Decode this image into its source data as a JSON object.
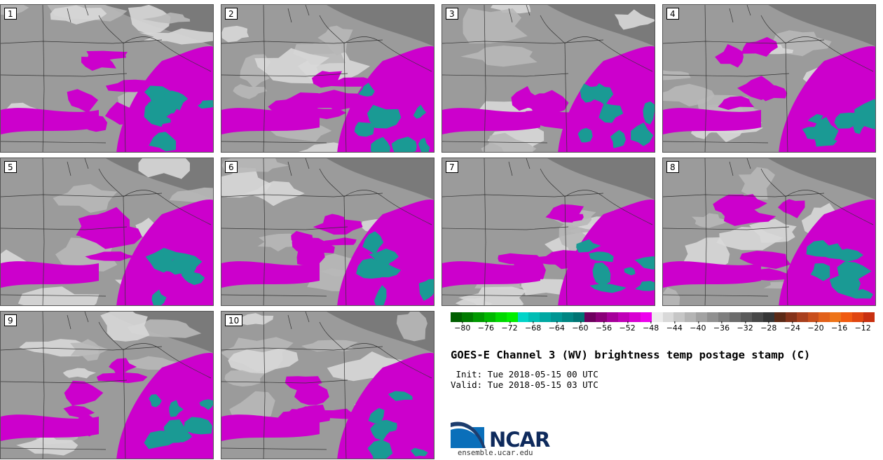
{
  "panels": [
    {
      "label": "1"
    },
    {
      "label": "2"
    },
    {
      "label": "3"
    },
    {
      "label": "4"
    },
    {
      "label": "5"
    },
    {
      "label": "6"
    },
    {
      "label": "7"
    },
    {
      "label": "8"
    },
    {
      "label": "9"
    },
    {
      "label": "10"
    }
  ],
  "colorbar": {
    "colors": [
      "#005f00",
      "#007a00",
      "#009900",
      "#00b800",
      "#00d800",
      "#00ee00",
      "#00d4c8",
      "#00bdb4",
      "#00a8a2",
      "#009693",
      "#008582",
      "#007473",
      "#6e005e",
      "#8a0078",
      "#a6009a",
      "#c000b8",
      "#d800d2",
      "#ee00ee",
      "#ececec",
      "#d9d9d9",
      "#c6c6c6",
      "#b4b4b4",
      "#a2a2a2",
      "#909090",
      "#7e7e7e",
      "#6c6c6c",
      "#5a5a5a",
      "#484848",
      "#363636",
      "#5c2a16",
      "#84331a",
      "#a8401e",
      "#c84f1c",
      "#e2611a",
      "#ee7418",
      "#f05a10",
      "#e04610",
      "#c83010"
    ],
    "ticks": [
      "−80",
      "−76",
      "−72",
      "−68",
      "−64",
      "−60",
      "−56",
      "−52",
      "−48",
      "−44",
      "−40",
      "−36",
      "−32",
      "−28",
      "−24",
      "−20",
      "−16",
      "−12"
    ],
    "min": -82,
    "max": -10
  },
  "title": "GOES-E Channel 3 (WV) brightness temp postage stamp (C)",
  "init": " Init: Tue 2018-05-15 00 UTC",
  "valid": "Valid: Tue 2018-05-15 03 UTC",
  "logo": {
    "text": "NCAR",
    "site": "ensemble.ucar.edu"
  },
  "colors": {
    "deep_convection": "#cc00cc",
    "cold_tops": "#1a9a94",
    "dry_air": "#9b9b9b",
    "moist_air": "#d8d8d8"
  }
}
